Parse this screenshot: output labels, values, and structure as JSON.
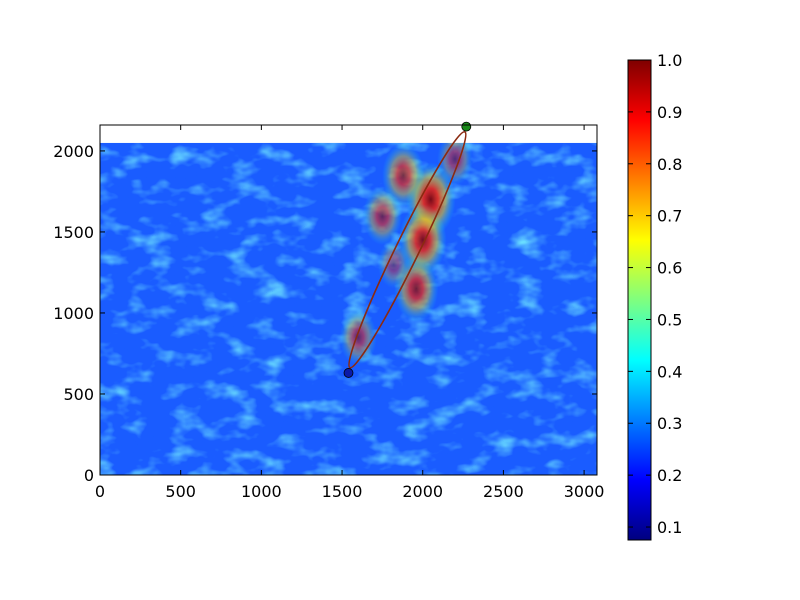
{
  "chart_data": {
    "type": "heatmap",
    "title": "",
    "xlabel": "",
    "ylabel": "",
    "xlim": [
      0,
      3080
    ],
    "ylim": [
      0,
      2160
    ],
    "image_extent": {
      "x": [
        0,
        3080
      ],
      "y": [
        0,
        2050
      ]
    },
    "x_ticks": [
      0,
      500,
      1000,
      1500,
      2000,
      2500,
      3000
    ],
    "y_ticks": [
      0,
      500,
      1000,
      1500,
      2000
    ],
    "colormap": "jet",
    "colormap_stops": [
      "#00007f",
      "#0000ff",
      "#007fff",
      "#00ffff",
      "#7fff7f",
      "#ffff00",
      "#ff7f00",
      "#ff0000",
      "#7f0000"
    ],
    "background_value_approx": 0.25,
    "colorbar": {
      "range": [
        0.075,
        1.0
      ],
      "ticks": [
        "0.1",
        "0.2",
        "0.3",
        "0.4",
        "0.5",
        "0.6",
        "0.7",
        "0.8",
        "0.9",
        "1.0"
      ]
    },
    "overlays": {
      "ellipse": {
        "color": "#8b2a10",
        "center": [
          1905,
          1390
        ],
        "semi_major": 810,
        "semi_minor": 72,
        "angle_deg": 64
      },
      "points": [
        {
          "name": "start",
          "x": 1540,
          "y": 630,
          "color": "#0a1aa8"
        },
        {
          "name": "end",
          "x": 2270,
          "y": 2150,
          "color": "#1a8a1a"
        }
      ],
      "hotspot_regions": [
        {
          "x": 2050,
          "y": 1700,
          "value": 0.95
        },
        {
          "x": 2000,
          "y": 1450,
          "value": 0.9
        },
        {
          "x": 1880,
          "y": 1850,
          "value": 0.75
        },
        {
          "x": 1960,
          "y": 1150,
          "value": 0.8
        },
        {
          "x": 1750,
          "y": 1600,
          "value": 0.65
        },
        {
          "x": 1820,
          "y": 1300,
          "value": 0.45
        },
        {
          "x": 1600,
          "y": 850,
          "value": 0.6
        },
        {
          "x": 2200,
          "y": 1950,
          "value": 0.55
        }
      ]
    }
  }
}
